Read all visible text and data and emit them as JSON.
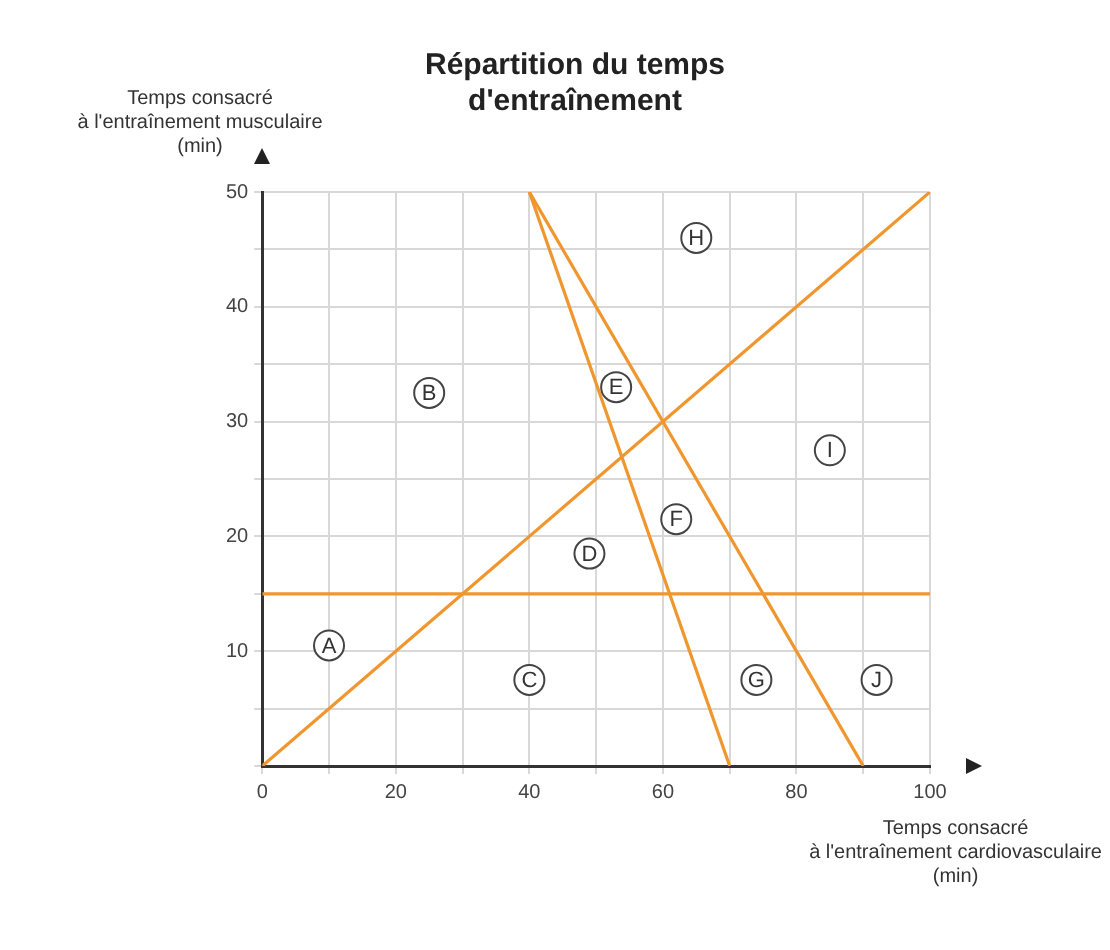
{
  "chart_data": {
    "type": "line",
    "title": "Répartition du temps\nd'entraînement",
    "xlabel": "Temps consacré\nà l'entraînement cardiovasculaire\n(min)",
    "ylabel": "Temps consacré\nà l'entraînement musculaire\n(min)",
    "xlim": [
      0,
      100
    ],
    "ylim": [
      0,
      50
    ],
    "xticks": [
      0,
      {
        "value": 10,
        "label": null
      },
      20,
      {
        "value": 30,
        "label": null
      },
      40,
      {
        "value": 50,
        "label": null
      },
      60,
      {
        "value": 70,
        "label": null
      },
      80,
      {
        "value": 90,
        "label": null
      },
      100
    ],
    "yticks": [
      {
        "value": 0,
        "label": null
      },
      {
        "value": 5,
        "label": null
      },
      10,
      {
        "value": 15,
        "label": null
      },
      20,
      {
        "value": 25,
        "label": null
      },
      30,
      {
        "value": 35,
        "label": null
      },
      40,
      {
        "value": 45,
        "label": null
      },
      50
    ],
    "grid": true,
    "legend": false,
    "marker": "none",
    "line_style": "solid",
    "series": [
      {
        "color": "#f0962e",
        "x": [
          0,
          100
        ],
        "values": [
          15,
          15
        ]
      },
      {
        "color": "#f0962e",
        "x": [
          0,
          100
        ],
        "values": [
          0,
          50
        ]
      },
      {
        "color": "#f0962e",
        "x": [
          40,
          70
        ],
        "values": [
          50,
          0
        ]
      },
      {
        "color": "#f0962e",
        "x": [
          40,
          90
        ],
        "values": [
          50,
          0
        ]
      }
    ],
    "annotations": [
      {
        "text": "A",
        "x": 10,
        "y": 10.5
      },
      {
        "text": "B",
        "x": 25,
        "y": 32.5
      },
      {
        "text": "C",
        "x": 40,
        "y": 7.5
      },
      {
        "text": "D",
        "x": 49,
        "y": 18.5
      },
      {
        "text": "E",
        "x": 53,
        "y": 33
      },
      {
        "text": "F",
        "x": 62,
        "y": 21.5
      },
      {
        "text": "G",
        "x": 74,
        "y": 7.5
      },
      {
        "text": "H",
        "x": 65,
        "y": 46
      },
      {
        "text": "I",
        "x": 85,
        "y": 27.5
      },
      {
        "text": "J",
        "x": 92,
        "y": 7.5
      }
    ]
  }
}
